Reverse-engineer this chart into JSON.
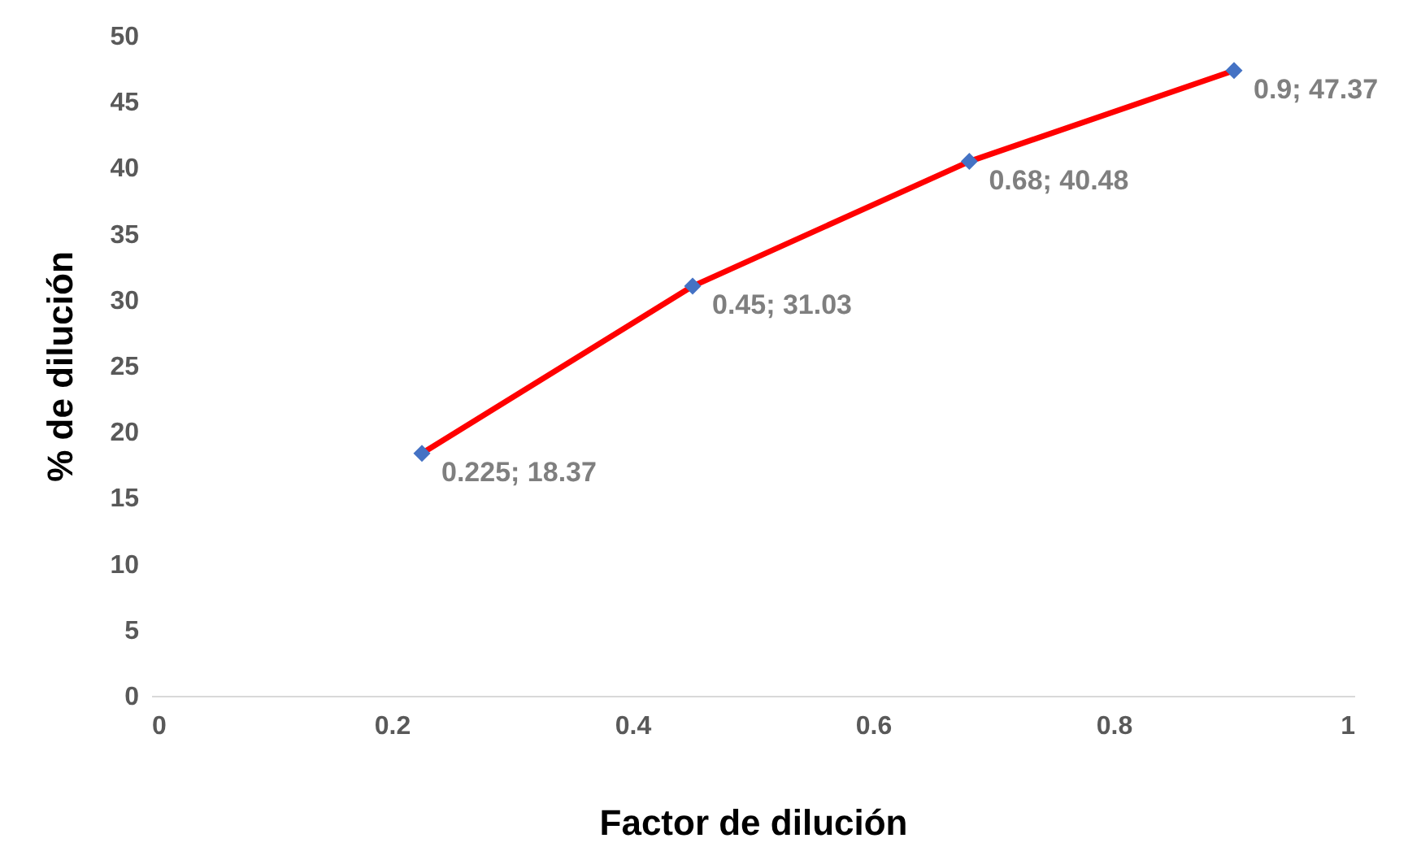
{
  "chart_data": {
    "type": "line",
    "xlabel": "Factor de dilución",
    "ylabel": "% de dilución",
    "x": [
      0.225,
      0.45,
      0.68,
      0.9
    ],
    "series": [
      {
        "color": "#ff0000",
        "marker": "none",
        "values": [
          18.37,
          31.03,
          40.48,
          47.37
        ]
      },
      {
        "type": "scatter",
        "color": "#4472c4",
        "marker": "diamond",
        "values": [
          18.37,
          31.03,
          40.48,
          47.37
        ],
        "value_labels": [
          "0.225; 18.37",
          "0.45; 31.03",
          "0.68; 40.48",
          "0.9; 47.37"
        ]
      }
    ],
    "xlim": [
      0,
      1
    ],
    "xticks": [
      0,
      0.2,
      0.4,
      0.6,
      0.8,
      1
    ],
    "ylim": [
      0,
      50
    ],
    "yticks": [
      0,
      5,
      10,
      15,
      20,
      25,
      30,
      35,
      40,
      45,
      50
    ],
    "grid": false
  }
}
